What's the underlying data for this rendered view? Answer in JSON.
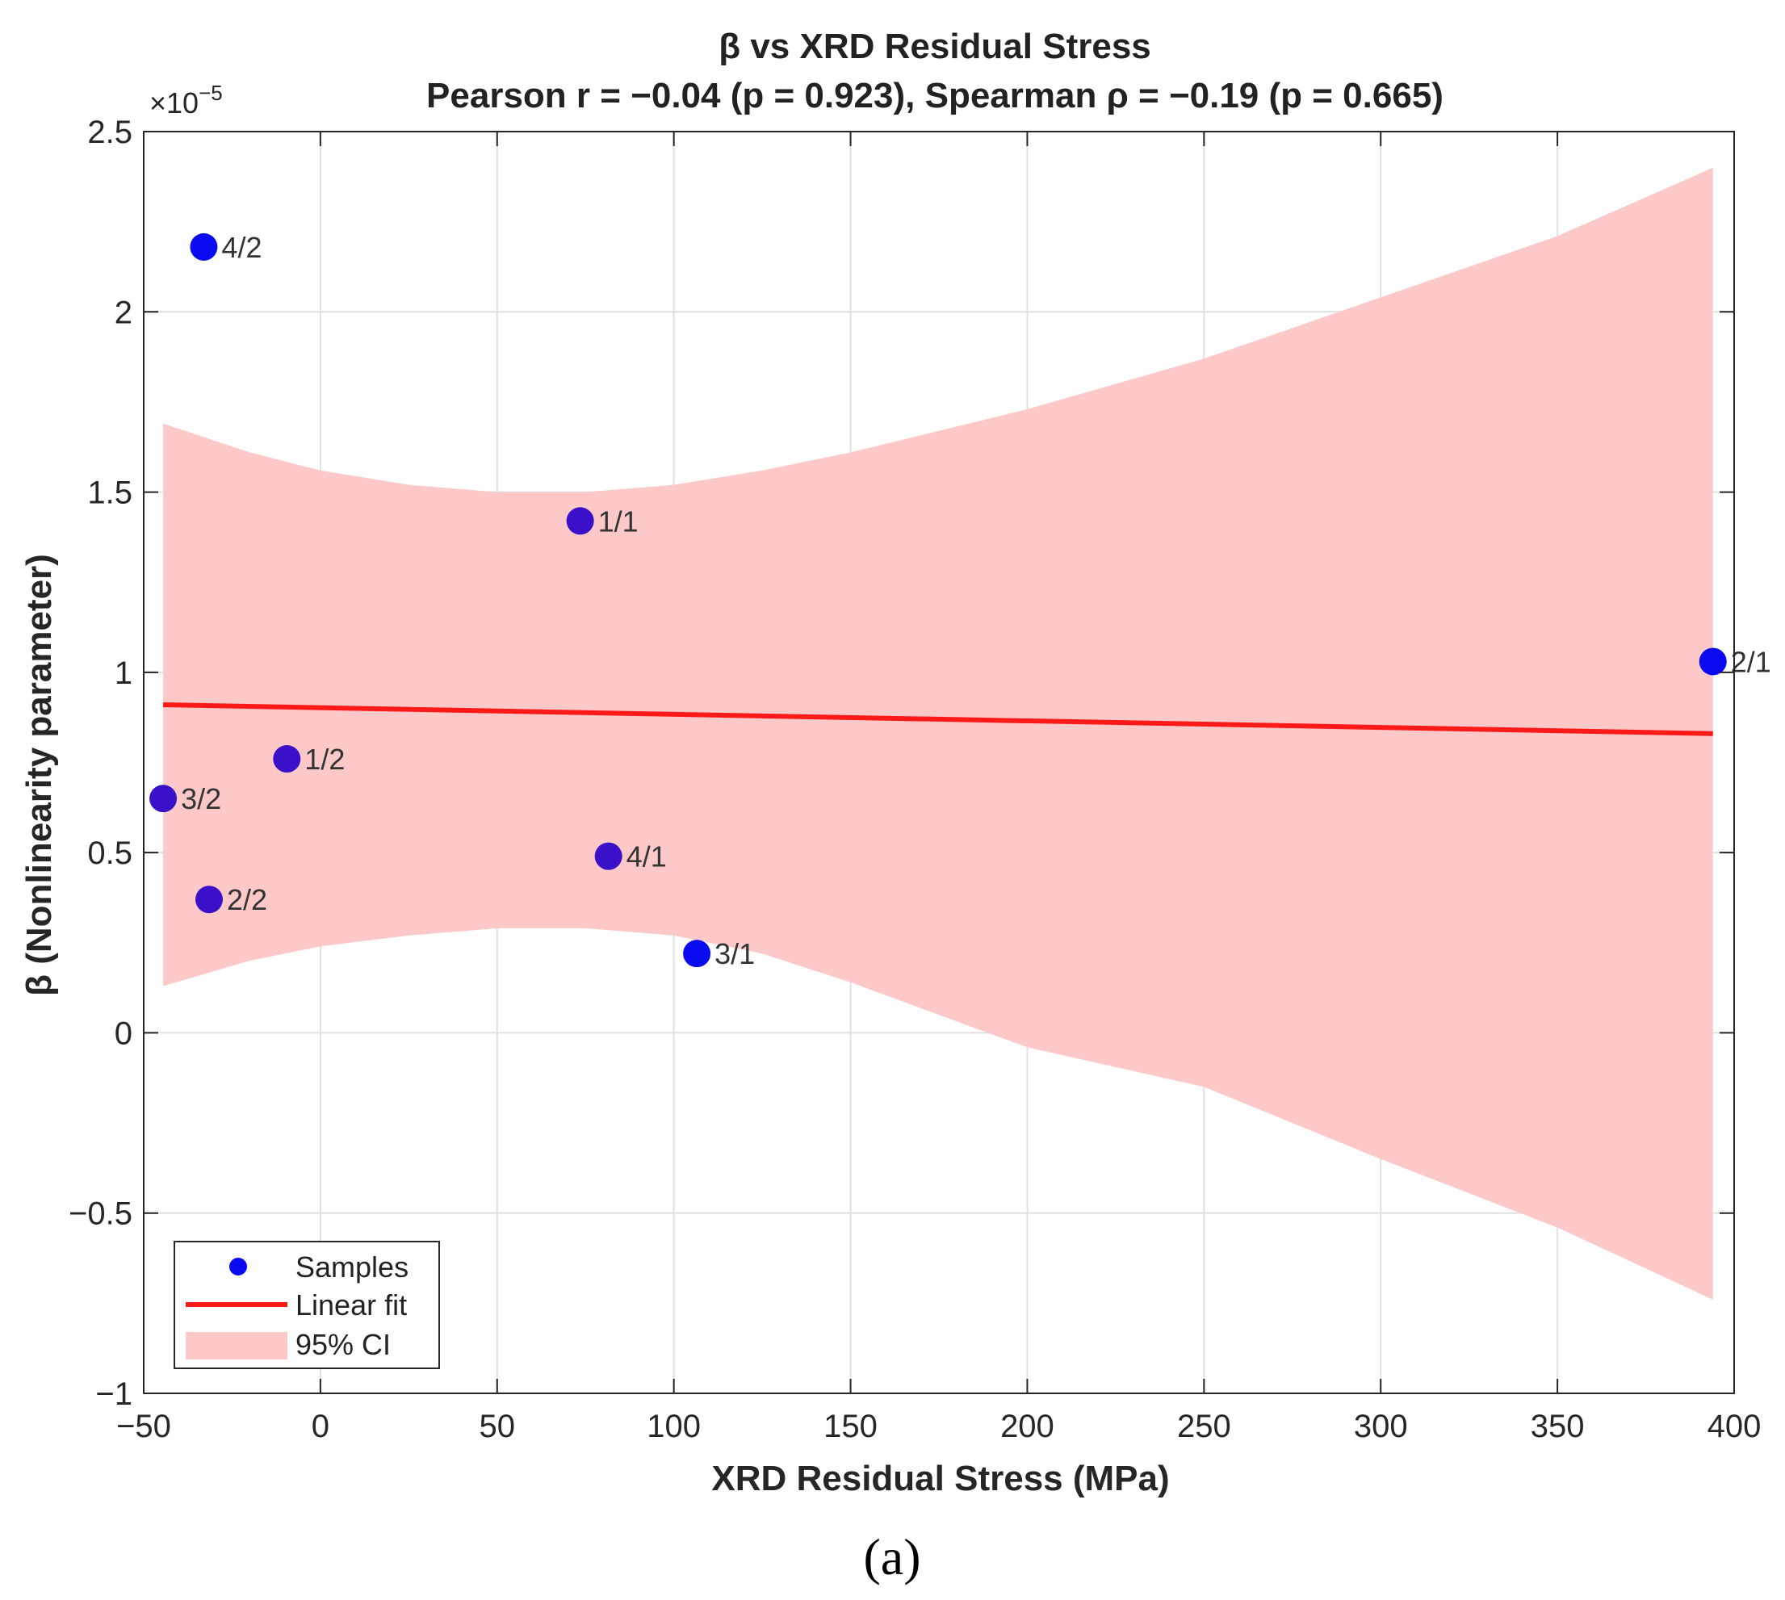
{
  "chart_data": {
    "type": "scatter",
    "title_line1": "β vs XRD Residual Stress",
    "title_line2": "Pearson r = −0.04 (p = 0.923), Spearman ρ = −0.19 (p = 0.665)",
    "xlabel": "XRD Residual Stress (MPa)",
    "ylabel": "β (Nonlinearity parameter)",
    "y_exponent_label": "×10",
    "y_exponent_power": "−5",
    "xlim": [
      -50,
      400
    ],
    "ylim": [
      -1,
      2.5
    ],
    "y_scale": 1e-05,
    "x_ticks": [
      -50,
      0,
      50,
      100,
      150,
      200,
      250,
      300,
      350,
      400
    ],
    "x_tick_labels": [
      "−50",
      "0",
      "50",
      "100",
      "150",
      "200",
      "250",
      "300",
      "350",
      "400"
    ],
    "y_ticks": [
      -1,
      -0.5,
      0,
      0.5,
      1,
      1.5,
      2,
      2.5
    ],
    "y_tick_labels": [
      "−1",
      "−0.5",
      "0",
      "0.5",
      "1",
      "1.5",
      "2",
      "2.5"
    ],
    "grid": true,
    "points": [
      {
        "label": "4/2",
        "x": -33,
        "y": 2.18
      },
      {
        "label": "1/1",
        "x": 73.5,
        "y": 1.42
      },
      {
        "label": "2/1",
        "x": 394,
        "y": 1.03
      },
      {
        "label": "1/2",
        "x": -9.5,
        "y": 0.76
      },
      {
        "label": "3/2",
        "x": -44.5,
        "y": 0.65
      },
      {
        "label": "4/1",
        "x": 81.5,
        "y": 0.49
      },
      {
        "label": "2/2",
        "x": -31.5,
        "y": 0.37
      },
      {
        "label": "3/1",
        "x": 106.5,
        "y": 0.22
      }
    ],
    "fit": {
      "x_start": -44.5,
      "y_start": 0.91,
      "x_end": 394,
      "y_end": 0.83
    },
    "ci_upper": [
      [
        -44.5,
        1.69
      ],
      [
        -20,
        1.61
      ],
      [
        0,
        1.56
      ],
      [
        25,
        1.52
      ],
      [
        50,
        1.5
      ],
      [
        75,
        1.5
      ],
      [
        100,
        1.52
      ],
      [
        125,
        1.56
      ],
      [
        150,
        1.61
      ],
      [
        175,
        1.67
      ],
      [
        200,
        1.73
      ],
      [
        250,
        1.87
      ],
      [
        300,
        2.04
      ],
      [
        350,
        2.21
      ],
      [
        394,
        2.4
      ]
    ],
    "ci_lower": [
      [
        -44.5,
        0.13
      ],
      [
        -20,
        0.2
      ],
      [
        0,
        0.24
      ],
      [
        25,
        0.27
      ],
      [
        50,
        0.29
      ],
      [
        75,
        0.29
      ],
      [
        100,
        0.27
      ],
      [
        125,
        0.22
      ],
      [
        150,
        0.14
      ],
      [
        175,
        0.05
      ],
      [
        200,
        -0.04
      ],
      [
        250,
        -0.15
      ],
      [
        300,
        -0.35
      ],
      [
        350,
        -0.54
      ],
      [
        394,
        -0.74
      ]
    ],
    "legend": {
      "position": "bottom-left",
      "entries": [
        "Samples",
        "Linear fit",
        "95% CI"
      ]
    },
    "colors": {
      "points": "#0a0af0",
      "points_overlap": "#3a10c8",
      "fit": "#ff1a1a",
      "ci": "#fcc8c8",
      "grid": "#e0e0e0",
      "axis": "#262626"
    },
    "caption": "(a)"
  }
}
